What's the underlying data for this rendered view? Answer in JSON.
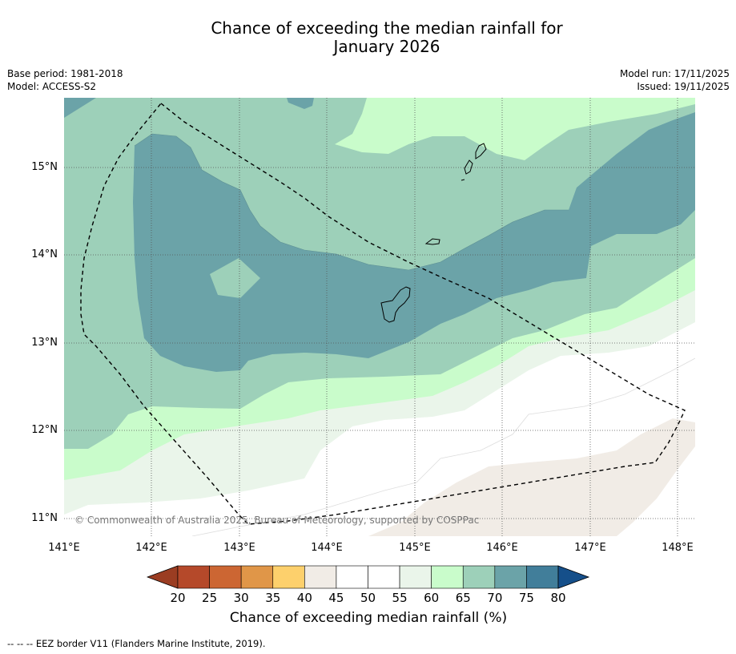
{
  "title": {
    "line1": "Chance of exceeding the median rainfall for",
    "line2": "January 2026"
  },
  "meta": {
    "base_period": "Base period: 1981-2018",
    "model": "Model: ACCESS-S2",
    "model_run": "Model run: 17/11/2025",
    "issued": "Issued: 19/11/2025"
  },
  "map": {
    "lat_labels": [
      "15°N",
      "14°N",
      "13°N",
      "12°N",
      "11°N"
    ],
    "lon_labels": [
      "141°E",
      "142°E",
      "143°E",
      "144°E",
      "145°E",
      "146°E",
      "147°E",
      "148°E"
    ],
    "copyright": "© Commonwealth of Australia 2025, Bureau of Meteorology, supported by COSPPac",
    "colors": {
      "c70_75": "#6ba3a8",
      "c65_70": "#9dd0b9",
      "c60_65": "#c9fccb",
      "c55_60": "#eaf5ea",
      "c50_55": "#ffffff",
      "c40_45": "#f1ece6"
    }
  },
  "colorbar": {
    "labels": [
      "20",
      "25",
      "30",
      "35",
      "40",
      "45",
      "50",
      "55",
      "60",
      "65",
      "70",
      "75",
      "80"
    ],
    "colors": [
      "#b5492a",
      "#cc6633",
      "#e09648",
      "#fdd06c",
      "#f1ece6",
      "#ffffff",
      "#ffffff",
      "#eaf5ea",
      "#c9fccb",
      "#9dd0b9",
      "#6ba3a8",
      "#417e9a"
    ],
    "under_color": "#9b3d22",
    "over_color": "#154f8a",
    "title": "Chance of exceeding median rainfall (%)"
  },
  "footnote": "--  --  -- EEZ border V11 (Flanders Marine Institute, 2019)."
}
